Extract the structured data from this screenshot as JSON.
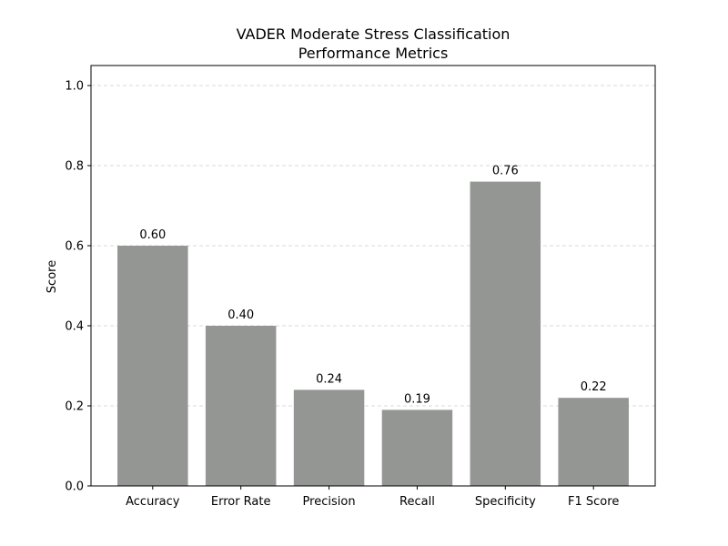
{
  "chart_data": {
    "type": "bar",
    "title": [
      "VADER Moderate Stress Classification",
      "Performance Metrics"
    ],
    "xlabel": "",
    "ylabel": "Score",
    "categories": [
      "Accuracy",
      "Error Rate",
      "Precision",
      "Recall",
      "Specificity",
      "F1 Score"
    ],
    "values": [
      0.6,
      0.4,
      0.24,
      0.19,
      0.76,
      0.22
    ],
    "value_labels": [
      "0.60",
      "0.40",
      "0.24",
      "0.19",
      "0.76",
      "0.22"
    ],
    "ylim": [
      0,
      1.05
    ],
    "yticks": [
      0.0,
      0.2,
      0.4,
      0.6,
      0.8,
      1.0
    ],
    "ytick_labels": [
      "0.0",
      "0.2",
      "0.4",
      "0.6",
      "0.8",
      "1.0"
    ],
    "grid": "y-dashed",
    "bar_color": "#949694",
    "legend": "none"
  }
}
